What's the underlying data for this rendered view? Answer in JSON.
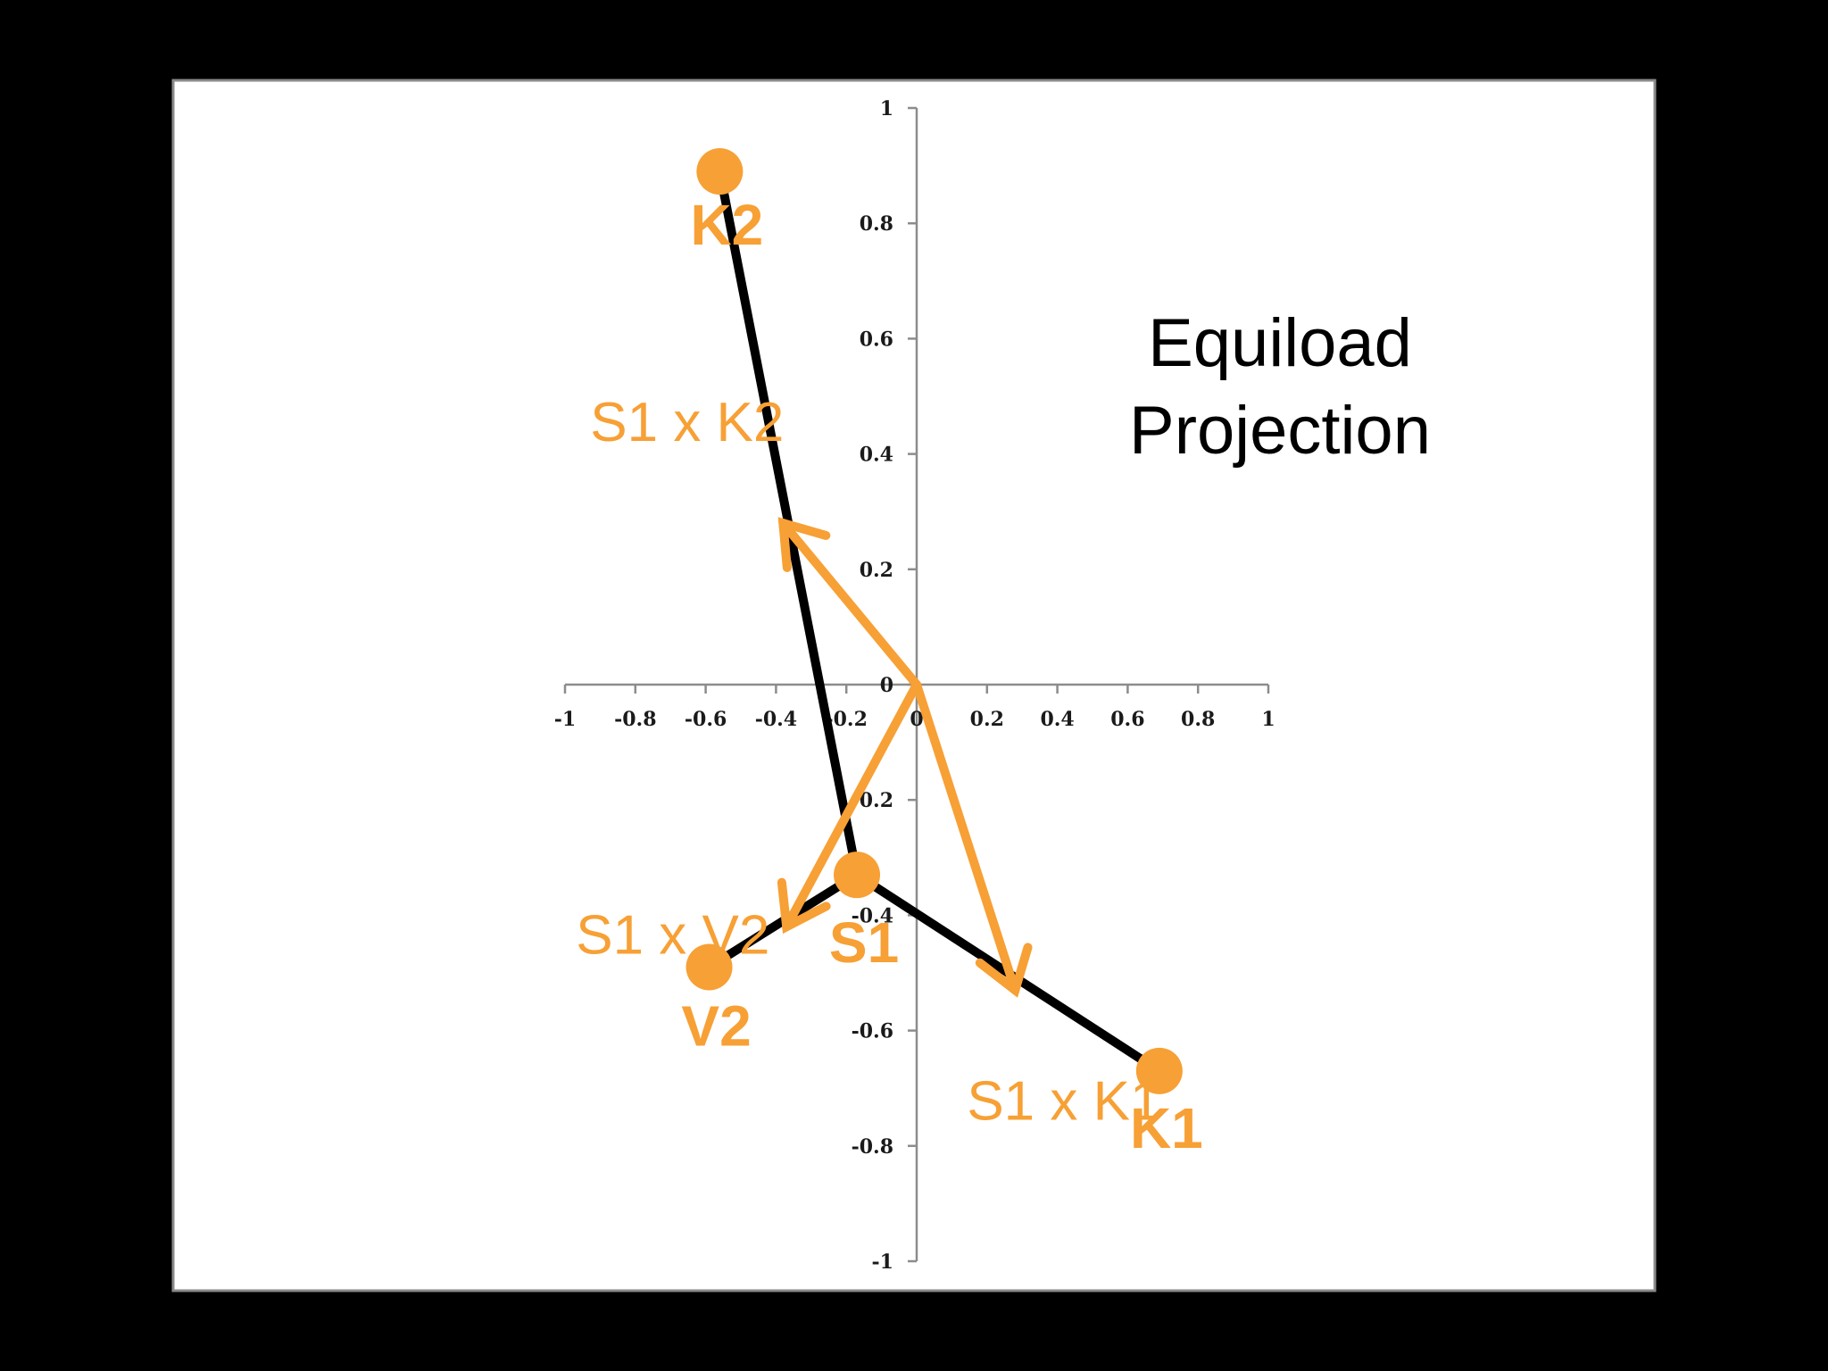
{
  "chart_data": {
    "type": "scatter",
    "title_lines": [
      "Equiload",
      "Projection"
    ],
    "xlim": [
      -1,
      1
    ],
    "ylim": [
      -1,
      1
    ],
    "x_ticks": [
      "-1",
      "-0.8",
      "-0.6",
      "-0.4",
      "-0.2",
      "0",
      "0.2",
      "0.4",
      "0.6",
      "0.8",
      "1"
    ],
    "y_ticks": [
      "1",
      "0.8",
      "0.6",
      "0.4",
      "0.2",
      "0",
      "-0.2",
      "-0.4",
      "-0.6",
      "-0.8",
      "-1"
    ],
    "grid": false,
    "points": [
      {
        "label": "K2",
        "x": -0.56,
        "y": 0.89
      },
      {
        "label": "S1",
        "x": -0.17,
        "y": -0.33
      },
      {
        "label": "V2",
        "x": -0.59,
        "y": -0.49
      },
      {
        "label": "K1",
        "x": 0.69,
        "y": -0.67
      }
    ],
    "segments": [
      {
        "from": "K2",
        "to": "S1"
      },
      {
        "from": "V2",
        "to": "S1"
      },
      {
        "from": "S1",
        "to": "K1"
      }
    ],
    "vectors": [
      {
        "label": "S1 x K2",
        "x": -0.38,
        "y": 0.28
      },
      {
        "label": "S1 x V2",
        "x": -0.37,
        "y": -0.42
      },
      {
        "label": "S1 x K1",
        "x": 0.28,
        "y": -0.53
      }
    ],
    "colors": {
      "marker": "#F7A035",
      "line": "#000000",
      "plot_background": "#FFFFFF",
      "page_background": "#000000"
    }
  }
}
